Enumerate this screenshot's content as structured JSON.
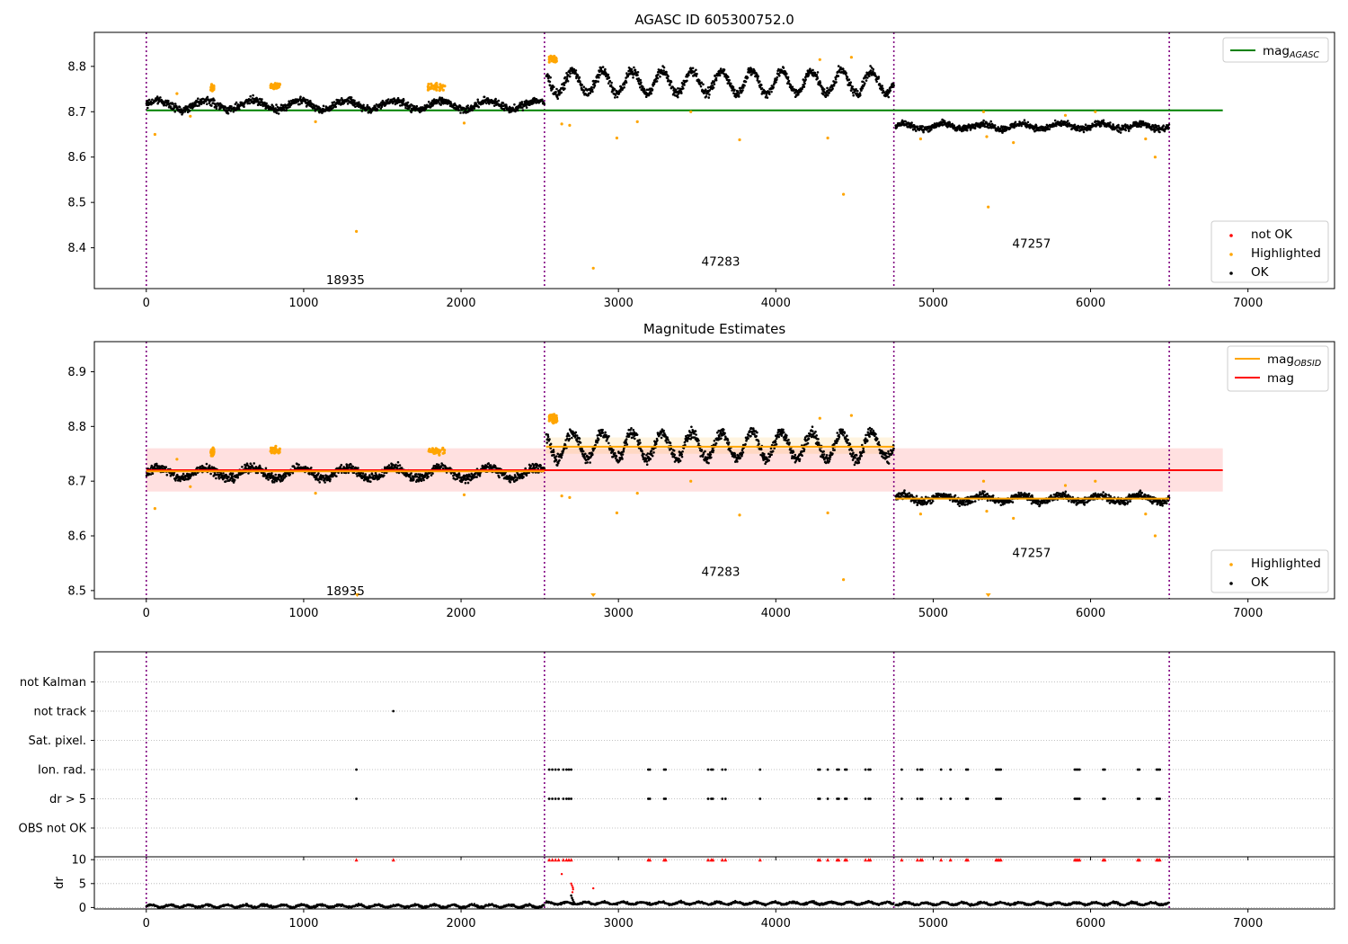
{
  "chart_data": [
    {
      "type": "scatter",
      "title": "AGASC ID 605300752.0",
      "xlim": [
        -330,
        7550
      ],
      "ylim": [
        8.31,
        8.875
      ],
      "xticks": [
        0,
        1000,
        2000,
        3000,
        4000,
        5000,
        6000,
        7000
      ],
      "yticks": [
        8.4,
        8.5,
        8.6,
        8.7,
        8.8
      ],
      "grid": false,
      "vlines": [
        0,
        2530,
        4750,
        6500
      ],
      "obs_labels": [
        {
          "label": "18935",
          "x": 1265,
          "y": 8.33
        },
        {
          "label": "47283",
          "x": 3650,
          "y": 8.37
        },
        {
          "label": "47257",
          "x": 5625,
          "y": 8.41
        }
      ],
      "lines": [
        {
          "name": "mag_AGASC",
          "color": "#008000",
          "x": [
            0,
            6840
          ],
          "y": [
            8.703,
            8.703
          ]
        }
      ],
      "segments": [
        {
          "x_start": 0,
          "x_end": 2530,
          "base": 8.715,
          "amp": 0.01,
          "period": 300,
          "noise": 0.007
        },
        {
          "x_start": 2540,
          "x_end": 4750,
          "base": 8.765,
          "amp": 0.025,
          "period": 190,
          "noise": 0.009
        },
        {
          "x_start": 4760,
          "x_end": 6500,
          "base": 8.668,
          "amp": 0.006,
          "period": 250,
          "noise": 0.006
        }
      ],
      "highlighted_clusters": [
        {
          "x_start": 410,
          "x_end": 430,
          "y": 8.752
        },
        {
          "x_start": 790,
          "x_end": 850,
          "y": 8.756
        },
        {
          "x_start": 1790,
          "x_end": 1900,
          "y": 8.755
        },
        {
          "x_start": 2560,
          "x_end": 2610,
          "y": 8.815
        }
      ],
      "highlighted_points": [
        [
          55,
          8.65
        ],
        [
          195,
          8.74
        ],
        [
          280,
          8.69
        ],
        [
          1075,
          8.678
        ],
        [
          1335,
          8.436
        ],
        [
          2020,
          8.675
        ],
        [
          2640,
          8.673
        ],
        [
          2690,
          8.67
        ],
        [
          2840,
          8.355
        ],
        [
          2990,
          8.642
        ],
        [
          3120,
          8.678
        ],
        [
          3460,
          8.7
        ],
        [
          3770,
          8.638
        ],
        [
          4280,
          8.815
        ],
        [
          4330,
          8.642
        ],
        [
          4430,
          8.518
        ],
        [
          4480,
          8.82
        ],
        [
          4920,
          8.64
        ],
        [
          5320,
          8.7
        ],
        [
          5340,
          8.645
        ],
        [
          5350,
          8.49
        ],
        [
          5510,
          8.632
        ],
        [
          5840,
          8.692
        ],
        [
          6030,
          8.7
        ],
        [
          6350,
          8.64
        ],
        [
          6410,
          8.6
        ]
      ],
      "legends": [
        {
          "position": "top-right",
          "entries": [
            {
              "label": "mag",
              "sub": "AGASC",
              "marker": "line",
              "color": "#008000"
            }
          ]
        },
        {
          "position": "lower-right",
          "entries": [
            {
              "label": "not OK",
              "marker": "dot",
              "color": "#ff0000"
            },
            {
              "label": "Highlighted",
              "marker": "dot",
              "color": "#ffa500"
            },
            {
              "label": "OK",
              "marker": "dot",
              "color": "#000000"
            }
          ]
        }
      ]
    },
    {
      "type": "scatter",
      "title": "Magnitude Estimates",
      "xlim": [
        -330,
        7550
      ],
      "ylim": [
        8.485,
        8.955
      ],
      "xticks": [
        0,
        1000,
        2000,
        3000,
        4000,
        5000,
        6000,
        7000
      ],
      "yticks": [
        8.5,
        8.6,
        8.7,
        8.8,
        8.9
      ],
      "grid": false,
      "vlines": [
        0,
        2530,
        4750,
        6500
      ],
      "obs_labels": [
        {
          "label": "18935",
          "x": 1265,
          "y": 8.5
        },
        {
          "label": "47283",
          "x": 3650,
          "y": 8.535
        },
        {
          "label": "47257",
          "x": 5625,
          "y": 8.57
        }
      ],
      "bands": [
        {
          "color": "#ff0000",
          "opacity": 0.12,
          "x": [
            0,
            6840
          ],
          "y": [
            8.681,
            8.76
          ]
        },
        {
          "color": "#ffa500",
          "opacity": 0.12,
          "x": [
            2540,
            4750
          ],
          "y": [
            8.75,
            8.78
          ]
        }
      ],
      "lines": [
        {
          "name": "mag",
          "color": "#ff0000",
          "x": [
            0,
            6840
          ],
          "y": [
            8.72,
            8.72
          ]
        },
        {
          "name": "mag_OBSID",
          "color": "#ffa500",
          "x": [
            0,
            2530
          ],
          "y": [
            8.718,
            8.718
          ]
        },
        {
          "name": "mag_OBSID",
          "color": "#ffa500",
          "x": [
            2540,
            4750
          ],
          "y": [
            8.763,
            8.763
          ]
        },
        {
          "name": "mag_OBSID",
          "color": "#ffa500",
          "x": [
            4760,
            6500
          ],
          "y": [
            8.668,
            8.668
          ]
        }
      ],
      "segments": [
        {
          "x_start": 0,
          "x_end": 2530,
          "base": 8.715,
          "amp": 0.01,
          "period": 300,
          "noise": 0.007
        },
        {
          "x_start": 2540,
          "x_end": 4750,
          "base": 8.765,
          "amp": 0.025,
          "period": 190,
          "noise": 0.009
        },
        {
          "x_start": 4760,
          "x_end": 6500,
          "base": 8.668,
          "amp": 0.006,
          "period": 250,
          "noise": 0.006
        }
      ],
      "highlighted_clusters": [
        {
          "x_start": 410,
          "x_end": 430,
          "y": 8.752
        },
        {
          "x_start": 790,
          "x_end": 850,
          "y": 8.756
        },
        {
          "x_start": 1790,
          "x_end": 1900,
          "y": 8.755
        },
        {
          "x_start": 2560,
          "x_end": 2610,
          "y": 8.815
        }
      ],
      "highlighted_points": [
        [
          55,
          8.65
        ],
        [
          195,
          8.74
        ],
        [
          280,
          8.69
        ],
        [
          1075,
          8.678
        ],
        [
          2020,
          8.675
        ],
        [
          2640,
          8.673
        ],
        [
          2690,
          8.67
        ],
        [
          2990,
          8.642
        ],
        [
          3120,
          8.678
        ],
        [
          3460,
          8.7
        ],
        [
          3770,
          8.638
        ],
        [
          4280,
          8.815
        ],
        [
          4330,
          8.642
        ],
        [
          4430,
          8.52
        ],
        [
          4480,
          8.82
        ],
        [
          4920,
          8.64
        ],
        [
          5320,
          8.7
        ],
        [
          5340,
          8.645
        ],
        [
          5510,
          8.632
        ],
        [
          5840,
          8.692
        ],
        [
          6030,
          8.7
        ],
        [
          6350,
          8.64
        ],
        [
          6410,
          8.6
        ]
      ],
      "highlighted_clipped": [
        [
          1340,
          8.49
        ],
        [
          2840,
          8.49
        ],
        [
          5350,
          8.49
        ]
      ],
      "legends": [
        {
          "position": "top-right",
          "entries": [
            {
              "label": "mag",
              "sub": "OBSID",
              "marker": "line",
              "color": "#ffa500"
            },
            {
              "label": "mag",
              "marker": "line",
              "color": "#ff0000"
            }
          ]
        },
        {
          "position": "lower-right",
          "entries": [
            {
              "label": "Highlighted",
              "marker": "dot",
              "color": "#ffa500"
            },
            {
              "label": "OK",
              "marker": "dot",
              "color": "#000000"
            }
          ]
        }
      ]
    },
    {
      "type": "scatter",
      "title": "",
      "xlim": [
        -330,
        7550
      ],
      "categories": [
        "not Kalman",
        "not track",
        "Sat. pixel.",
        "Ion. rad.",
        "dr > 5",
        "OBS not OK"
      ],
      "grid": true,
      "vlines": [
        0,
        2530,
        4750,
        6500
      ],
      "flag_points": {
        "not track": [
          1570
        ],
        "Ion. rad.": [
          1335,
          2560,
          2580,
          2600,
          2620,
          2650,
          2670,
          2685,
          2700,
          3190,
          3200,
          3290,
          3300,
          3570,
          3590,
          3600,
          3660,
          3680,
          3900,
          4270,
          4280,
          4330,
          4390,
          4400,
          4440,
          4450,
          4570,
          4590,
          4600,
          4800,
          4900,
          4920,
          4930,
          5050,
          5110,
          5210,
          5220,
          5400,
          5410,
          5420,
          5430,
          5900,
          5910,
          5920,
          5930,
          6080,
          6090,
          6300,
          6310,
          6420,
          6430,
          6440
        ],
        "dr > 5": [
          1335,
          2560,
          2580,
          2600,
          2620,
          2650,
          2670,
          2685,
          2700,
          3190,
          3200,
          3290,
          3300,
          3570,
          3590,
          3600,
          3660,
          3680,
          3900,
          4270,
          4280,
          4330,
          4390,
          4400,
          4440,
          4450,
          4570,
          4590,
          4600,
          4800,
          4900,
          4920,
          4930,
          5050,
          5110,
          5210,
          5220,
          5400,
          5410,
          5420,
          5430,
          5900,
          5910,
          5920,
          5930,
          6080,
          6090,
          6300,
          6310,
          6420,
          6430,
          6440
        ]
      }
    },
    {
      "type": "scatter",
      "title": "",
      "ylabel": "dr",
      "xlim": [
        -330,
        7550
      ],
      "ylim": [
        -0.3,
        10.6
      ],
      "xticks": [
        0,
        1000,
        2000,
        3000,
        4000,
        5000,
        6000,
        7000
      ],
      "yticks": [
        0,
        5,
        10
      ],
      "grid": true,
      "vlines": [
        0,
        2530,
        4750,
        6500
      ],
      "not_ok_capped": [
        1335,
        1570,
        2560,
        2580,
        2600,
        2620,
        2650,
        2670,
        2685,
        2700,
        3190,
        3200,
        3290,
        3300,
        3570,
        3590,
        3600,
        3660,
        3680,
        3900,
        4270,
        4280,
        4330,
        4390,
        4400,
        4440,
        4450,
        4570,
        4590,
        4600,
        4800,
        4900,
        4920,
        4930,
        5050,
        5110,
        5210,
        5220,
        5400,
        5410,
        5420,
        5430,
        5900,
        5910,
        5920,
        5930,
        6080,
        6090,
        6300,
        6310,
        6420,
        6430,
        6440
      ],
      "not_ok_points": [
        [
          2640,
          7
        ],
        [
          2700,
          5
        ],
        [
          2705,
          4.6
        ],
        [
          2710,
          4.2
        ],
        [
          2712,
          3.8
        ],
        [
          2708,
          3.2
        ],
        [
          2840,
          4
        ]
      ],
      "ok_spike": [
        [
          2700,
          2.5
        ],
        [
          2705,
          2.0
        ],
        [
          2710,
          1.6
        ],
        [
          2715,
          1.2
        ],
        [
          2720,
          0.9
        ]
      ],
      "dr_segments": [
        {
          "x_start": 0,
          "x_end": 2530,
          "mean": 0.3
        },
        {
          "x_start": 2540,
          "x_end": 4750,
          "mean": 0.9
        },
        {
          "x_start": 4760,
          "x_end": 6500,
          "mean": 0.8
        }
      ]
    }
  ]
}
